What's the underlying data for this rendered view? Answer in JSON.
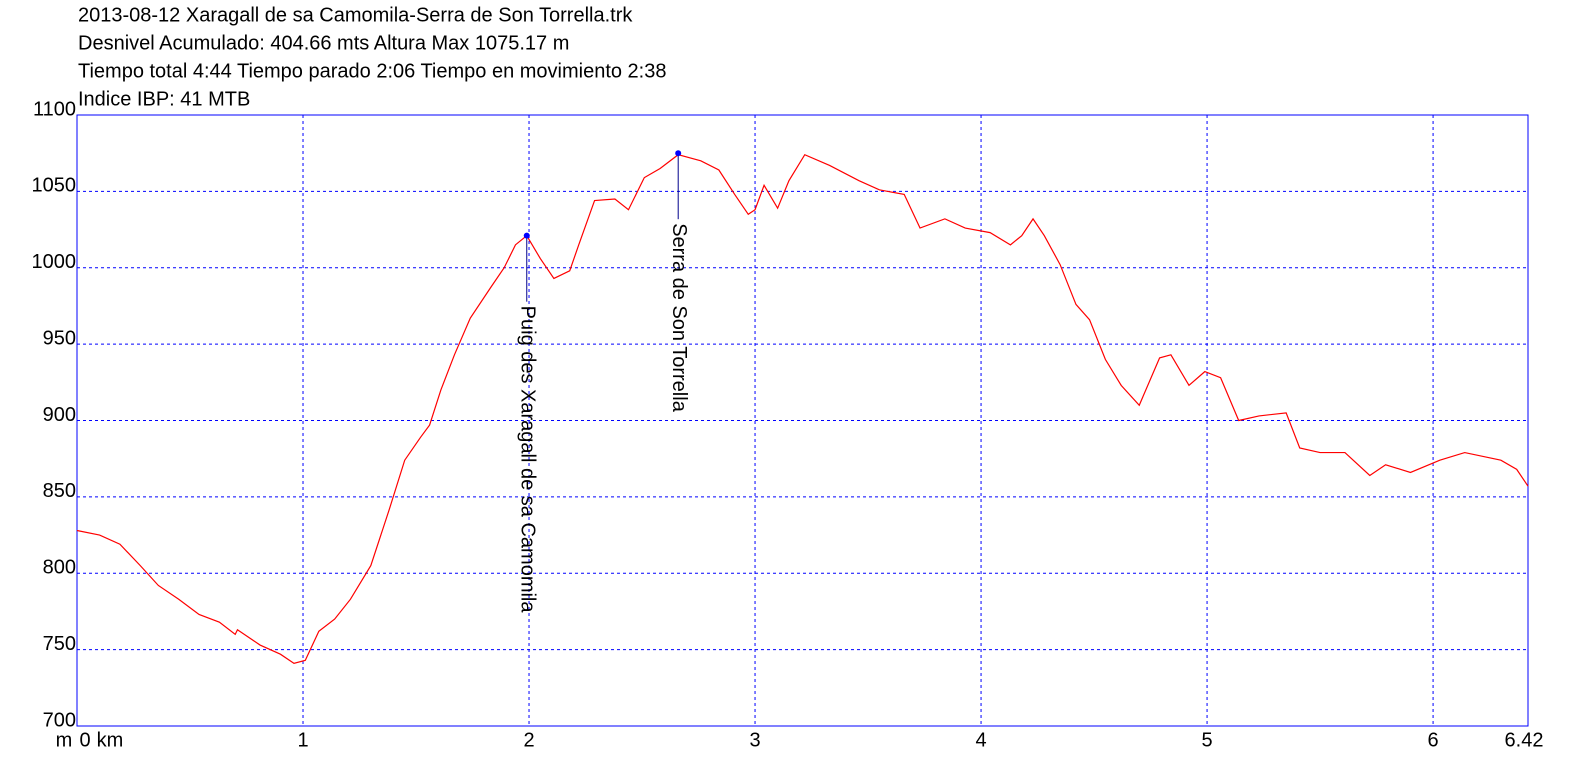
{
  "chart_data": {
    "type": "line",
    "title_lines": [
      "2013-08-12 Xaragall de sa Camomila-Serra de Son Torrella.trk",
      "Desnivel Acumulado: 404.66 mts  Altura Max 1075.17 m",
      "Tiempo total 4:44 Tiempo parado 2:06 Tiempo en movimiento 2:38",
      "Indice IBP: 41 MTB"
    ],
    "y_unit": "m",
    "x_unit": "km",
    "xlim": [
      0,
      6.42
    ],
    "ylim": [
      700,
      1100
    ],
    "xticks": [
      0,
      1,
      2,
      3,
      4,
      5,
      6,
      6.42
    ],
    "yticks": [
      700,
      750,
      800,
      850,
      900,
      950,
      1000,
      1050,
      1100
    ],
    "grid": true,
    "color": "#ff0000",
    "frame_color": "#0000ff",
    "x": [
      0.0,
      0.1,
      0.19,
      0.28,
      0.36,
      0.45,
      0.54,
      0.63,
      0.7,
      0.71,
      0.81,
      0.9,
      0.96,
      1.01,
      1.07,
      1.14,
      1.21,
      1.3,
      1.38,
      1.45,
      1.52,
      1.56,
      1.61,
      1.67,
      1.74,
      1.83,
      1.89,
      1.94,
      1.99,
      2.05,
      2.11,
      2.18,
      2.22,
      2.29,
      2.38,
      2.44,
      2.51,
      2.58,
      2.66,
      2.76,
      2.84,
      2.91,
      2.97,
      3.0,
      3.04,
      3.1,
      3.15,
      3.22,
      3.33,
      3.46,
      3.55,
      3.66,
      3.73,
      3.84,
      3.93,
      4.04,
      4.13,
      4.18,
      4.23,
      4.28,
      4.35,
      4.42,
      4.48,
      4.55,
      4.62,
      4.7,
      4.79,
      4.84,
      4.92,
      4.99,
      5.06,
      5.14,
      5.23,
      5.35,
      5.41,
      5.5,
      5.61,
      5.72,
      5.79,
      5.9,
      6.03,
      6.14,
      6.3,
      6.37,
      6.42
    ],
    "values": [
      828,
      825,
      819,
      805,
      792,
      783,
      773,
      768,
      760,
      763,
      753,
      747,
      741,
      743,
      762,
      770,
      783,
      805,
      841,
      874,
      889,
      897,
      920,
      943,
      967,
      987,
      1000,
      1015,
      1021,
      1006,
      993,
      998,
      1015,
      1044,
      1045,
      1038,
      1059,
      1065,
      1074,
      1070,
      1064,
      1048,
      1035,
      1038,
      1054,
      1039,
      1057,
      1074,
      1067,
      1057,
      1051,
      1048,
      1026,
      1032,
      1026,
      1023,
      1015,
      1021,
      1032,
      1021,
      1002,
      976,
      966,
      940,
      923,
      910,
      941,
      943,
      923,
      932,
      928,
      900,
      903,
      905,
      882,
      879,
      879,
      864,
      871,
      866,
      874,
      879,
      874,
      868,
      857
    ],
    "waypoints": [
      {
        "label": "Puig des Xaragall de sa Camomila",
        "x": 1.99,
        "y": 1021
      },
      {
        "label": "Serra de Son Torrella",
        "x": 2.66,
        "y": 1075
      }
    ]
  }
}
